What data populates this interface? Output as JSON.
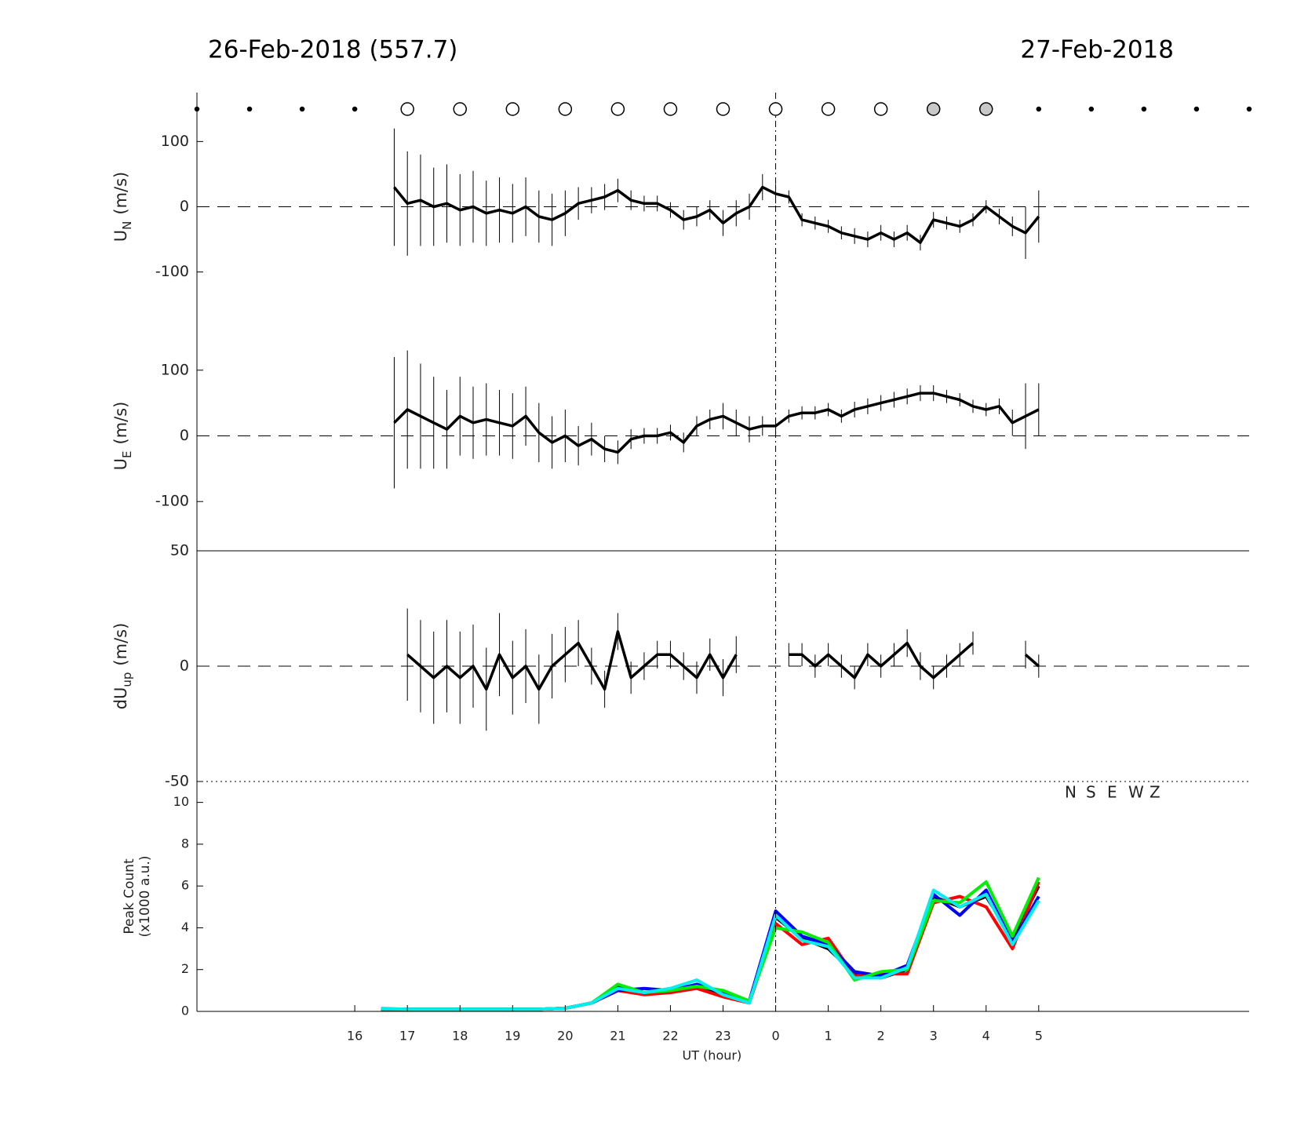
{
  "chart_data": [
    {
      "type": "errorline",
      "title": "26-Feb-2018 (557.7)",
      "title_right": "27-Feb-2018",
      "ylabel": "U",
      "ylabel_sub": "N",
      "ylabel_unit": "(m/s)",
      "sky": {
        "x": [
          13,
          14,
          15,
          16,
          17,
          18,
          19,
          20,
          21,
          22,
          23,
          24,
          25,
          26,
          27,
          28,
          29,
          30,
          31,
          32,
          33
        ],
        "state": [
          "dot",
          "dot",
          "dot",
          "dot",
          "open",
          "open",
          "open",
          "open",
          "open",
          "open",
          "open",
          "open",
          "open",
          "open",
          "filled",
          "filled",
          "dot",
          "dot",
          "dot",
          "dot",
          "dot"
        ]
      },
      "xlim": [
        13,
        33
      ],
      "ylim": [
        -175,
        175
      ],
      "yticks": [
        -100,
        0,
        100
      ],
      "hline": 0,
      "vline": 24,
      "color": "#000000",
      "x": [
        16.75,
        17,
        17.25,
        17.5,
        17.75,
        18,
        18.25,
        18.5,
        18.75,
        19,
        19.25,
        19.5,
        19.75,
        20,
        20.25,
        20.5,
        20.75,
        21,
        21.25,
        21.5,
        21.75,
        22,
        22.25,
        22.5,
        22.75,
        23,
        23.25,
        23.5,
        23.75,
        24,
        24.25,
        24.5,
        24.75,
        25,
        25.25,
        25.5,
        25.75,
        26,
        26.25,
        26.5,
        26.75,
        27,
        27.25,
        27.5,
        27.75,
        28,
        28.25,
        28.5,
        28.75,
        29
      ],
      "values": [
        30,
        5,
        10,
        0,
        5,
        -5,
        0,
        -10,
        -5,
        -10,
        0,
        -15,
        -20,
        -10,
        5,
        10,
        15,
        25,
        10,
        5,
        5,
        -5,
        -20,
        -15,
        -5,
        -25,
        -10,
        0,
        30,
        20,
        15,
        -20,
        -25,
        -30,
        -40,
        -45,
        -50,
        -40,
        -50,
        -40,
        -55,
        -20,
        -25,
        -30,
        -20,
        0,
        -15,
        -30,
        -40,
        -15
      ],
      "errors": [
        90,
        80,
        70,
        60,
        60,
        55,
        55,
        50,
        50,
        45,
        45,
        40,
        40,
        35,
        25,
        20,
        20,
        18,
        15,
        12,
        12,
        12,
        15,
        15,
        15,
        20,
        20,
        20,
        20,
        15,
        10,
        10,
        10,
        10,
        10,
        12,
        12,
        12,
        12,
        12,
        12,
        12,
        10,
        10,
        10,
        10,
        12,
        15,
        40,
        40
      ]
    },
    {
      "type": "errorline",
      "ylabel": "U",
      "ylabel_sub": "E",
      "ylabel_unit": "(m/s)",
      "xlim": [
        13,
        33
      ],
      "ylim": [
        -175,
        175
      ],
      "yticks": [
        -100,
        0,
        100
      ],
      "hline": 0,
      "color": "#000000",
      "x": [
        16.75,
        17,
        17.25,
        17.5,
        17.75,
        18,
        18.25,
        18.5,
        18.75,
        19,
        19.25,
        19.5,
        19.75,
        20,
        20.25,
        20.5,
        20.75,
        21,
        21.25,
        21.5,
        21.75,
        22,
        22.25,
        22.5,
        22.75,
        23,
        23.25,
        23.5,
        23.75,
        24,
        24.25,
        24.5,
        24.75,
        25,
        25.25,
        25.5,
        25.75,
        26,
        26.25,
        26.5,
        26.75,
        27,
        27.25,
        27.5,
        27.75,
        28,
        28.25,
        28.5,
        28.75,
        29
      ],
      "values": [
        20,
        40,
        30,
        20,
        10,
        30,
        20,
        25,
        20,
        15,
        30,
        5,
        -10,
        0,
        -15,
        -5,
        -20,
        -25,
        -5,
        0,
        0,
        5,
        -10,
        15,
        25,
        30,
        20,
        10,
        15,
        15,
        30,
        35,
        35,
        40,
        30,
        40,
        45,
        50,
        55,
        60,
        65,
        65,
        60,
        55,
        45,
        40,
        45,
        20,
        30,
        40
      ],
      "errors": [
        100,
        90,
        80,
        70,
        60,
        60,
        55,
        55,
        50,
        50,
        45,
        45,
        40,
        40,
        30,
        25,
        20,
        18,
        15,
        12,
        12,
        12,
        15,
        15,
        15,
        20,
        20,
        20,
        15,
        12,
        10,
        10,
        10,
        10,
        10,
        12,
        12,
        12,
        12,
        12,
        12,
        12,
        10,
        10,
        10,
        10,
        12,
        20,
        50,
        40
      ]
    },
    {
      "type": "errorline",
      "ylabel": "dU",
      "ylabel_sub": "up",
      "ylabel_unit": "(m/s)",
      "xlim": [
        13,
        33
      ],
      "ylim": [
        -50,
        50
      ],
      "yticks": [
        -50,
        0,
        50
      ],
      "hline": 0,
      "color": "#000000",
      "x": [
        16.75,
        17,
        17.25,
        17.5,
        17.75,
        18,
        18.25,
        18.5,
        18.75,
        19,
        19.25,
        19.5,
        19.75,
        20,
        20.25,
        20.5,
        20.75,
        21,
        21.25,
        21.5,
        21.75,
        22,
        22.25,
        22.5,
        22.75,
        23,
        23.25,
        23.5,
        23.75,
        24,
        24.25,
        24.5,
        24.75,
        25,
        25.25,
        25.5,
        25.75,
        26,
        26.25,
        26.5,
        26.75,
        27,
        27.25,
        27.5,
        27.75,
        28,
        28.25,
        28.5,
        28.75,
        29
      ],
      "values": [
        null,
        5,
        0,
        -5,
        0,
        -5,
        0,
        -10,
        5,
        -5,
        0,
        -10,
        0,
        5,
        10,
        0,
        -10,
        15,
        -5,
        0,
        5,
        5,
        0,
        -5,
        5,
        -5,
        5,
        null,
        null,
        null,
        5,
        5,
        0,
        5,
        0,
        -5,
        5,
        0,
        5,
        10,
        0,
        -5,
        0,
        5,
        10,
        null,
        null,
        null,
        5,
        0
      ],
      "errors": [
        null,
        20,
        20,
        20,
        20,
        20,
        18,
        18,
        18,
        16,
        16,
        15,
        14,
        12,
        10,
        8,
        8,
        8,
        7,
        6,
        6,
        6,
        6,
        7,
        7,
        8,
        8,
        null,
        null,
        null,
        5,
        5,
        5,
        5,
        5,
        5,
        5,
        5,
        5,
        6,
        6,
        5,
        5,
        5,
        5,
        null,
        null,
        null,
        6,
        5
      ]
    },
    {
      "type": "line",
      "ylabel": "Peak Count",
      "ylabel2": "(x1000 a.u.)",
      "xlabel": "UT (hour)",
      "xlim": [
        13,
        33
      ],
      "ylim": [
        0,
        11
      ],
      "yticks": [
        0,
        2,
        4,
        6,
        8,
        10
      ],
      "hline": 0,
      "xticks": [
        16,
        17,
        18,
        19,
        20,
        21,
        22,
        23,
        {
          "value": 24,
          "label": "0"
        },
        {
          "value": 25,
          "label": "1"
        },
        {
          "value": 26,
          "label": "2"
        },
        {
          "value": 27,
          "label": "3"
        },
        {
          "value": 28,
          "label": "4"
        },
        {
          "value": 29,
          "label": "5"
        }
      ],
      "x": [
        16.5,
        17,
        17.5,
        18,
        18.5,
        19,
        19.5,
        20,
        20.5,
        21,
        21.5,
        22,
        22.5,
        23,
        23.5,
        24,
        24.5,
        25,
        25.5,
        26,
        26.5,
        27,
        27.5,
        28,
        28.5,
        29
      ],
      "series": [
        {
          "name": "N",
          "color": "#000000",
          "values": [
            0.1,
            0.1,
            0.1,
            0.1,
            0.1,
            0.1,
            0.1,
            0.15,
            0.4,
            1.2,
            0.9,
            1,
            1.2,
            0.8,
            0.5,
            4.5,
            3.5,
            3,
            1.8,
            1.6,
            2,
            5.5,
            5,
            5.5,
            3.5,
            6
          ]
        },
        {
          "name": "S",
          "color": "#ff0000",
          "values": [
            0.1,
            0.1,
            0.1,
            0.1,
            0.1,
            0.1,
            0.1,
            0.15,
            0.4,
            1,
            0.8,
            0.9,
            1.1,
            0.7,
            0.4,
            4.2,
            3.2,
            3.5,
            1.7,
            1.8,
            1.8,
            5.2,
            5.5,
            5,
            3,
            6.2
          ]
        },
        {
          "name": "E",
          "color": "#0000ff",
          "values": [
            0.1,
            0.1,
            0.1,
            0.1,
            0.1,
            0.1,
            0.1,
            0.15,
            0.4,
            1,
            1.1,
            1,
            1.3,
            0.9,
            0.5,
            4.8,
            3.6,
            3.2,
            1.9,
            1.7,
            2.2,
            5.6,
            4.6,
            5.8,
            3.3,
            5.5
          ]
        },
        {
          "name": "W",
          "color": "#00ee00",
          "values": [
            0.1,
            0.1,
            0.1,
            0.1,
            0.1,
            0.1,
            0.1,
            0.15,
            0.4,
            1.3,
            0.9,
            1,
            1.2,
            1,
            0.5,
            4,
            3.8,
            3.3,
            1.5,
            1.9,
            2,
            5.3,
            5.2,
            6.2,
            3.6,
            6.4
          ]
        },
        {
          "name": "Z",
          "color": "#00eeee",
          "values": [
            0.15,
            0.1,
            0.1,
            0.1,
            0.1,
            0.1,
            0.1,
            0.15,
            0.4,
            1.1,
            0.9,
            1.1,
            1.5,
            0.8,
            0.4,
            4.6,
            3.4,
            3.1,
            1.6,
            1.6,
            2.1,
            5.8,
            5,
            5.6,
            3.2,
            5.3
          ]
        }
      ]
    }
  ]
}
